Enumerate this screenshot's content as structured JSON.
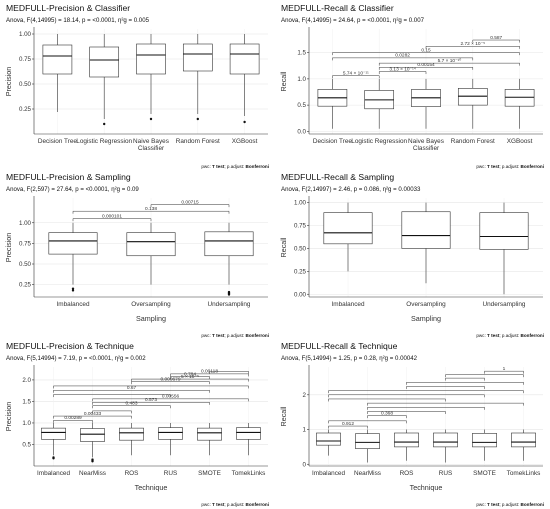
{
  "chart_data": [
    {
      "type": "boxplot",
      "title": "MEDFULL-Precision & Classifier",
      "subtitle": "Anova, F(4,14995) = 18.14, p = <0.0001, η²g = 0.005",
      "ylabel": "Precision",
      "xlabel": "",
      "footer_prefix": "pwc: ",
      "footer_test": "T test",
      "footer_mid": "; p.adjust: ",
      "footer_adjust": "Bonferroni",
      "ylim": [
        0,
        1.05
      ],
      "yticks": [
        "0.25",
        "0.50",
        "0.75",
        "1.00"
      ],
      "ytick_values": [
        0.25,
        0.5,
        0.75,
        1.0
      ],
      "categories": [
        "Decision Tree",
        "Logistic Regression",
        "Naive Bayes\nClassifier",
        "Random Forest",
        "XGBoost"
      ],
      "boxes": [
        {
          "min": 0.22,
          "q1": 0.6,
          "median": 0.78,
          "q3": 0.89,
          "max": 1.0,
          "outliers": []
        },
        {
          "min": 0.15,
          "q1": 0.57,
          "median": 0.74,
          "q3": 0.87,
          "max": 1.0,
          "outliers": [
            0.1
          ]
        },
        {
          "min": 0.2,
          "q1": 0.6,
          "median": 0.79,
          "q3": 0.9,
          "max": 1.0,
          "outliers": [
            0.15
          ]
        },
        {
          "min": 0.2,
          "q1": 0.63,
          "median": 0.8,
          "q3": 0.9,
          "max": 1.0,
          "outliers": [
            0.15
          ]
        },
        {
          "min": 0.18,
          "q1": 0.6,
          "median": 0.8,
          "q3": 0.9,
          "max": 1.0,
          "outliers": [
            0.12
          ]
        }
      ],
      "brackets": []
    },
    {
      "type": "boxplot",
      "title": "MEDFULL-Recall & Classifier",
      "subtitle": "Anova, F(4,14995) = 24.64, p = <0.0001, η²g = 0.007",
      "ylabel": "Recall",
      "xlabel": "",
      "footer_prefix": "pwc: ",
      "footer_test": "T test",
      "footer_mid": "; p.adjust: ",
      "footer_adjust": "Bonferroni",
      "ylim": [
        -0.05,
        1.95
      ],
      "yticks": [
        "0.0",
        "0.5",
        "1.0",
        "1.5"
      ],
      "ytick_values": [
        0.0,
        0.5,
        1.0,
        1.5
      ],
      "categories": [
        "Decision Tree",
        "Logistic Regression",
        "Naive Bayes\nClassifier",
        "Random Forest",
        "XGBoost"
      ],
      "boxes": [
        {
          "min": 0.05,
          "q1": 0.48,
          "median": 0.64,
          "q3": 0.8,
          "max": 1.0,
          "outliers": []
        },
        {
          "min": 0.05,
          "q1": 0.43,
          "median": 0.6,
          "q3": 0.78,
          "max": 1.0,
          "outliers": []
        },
        {
          "min": 0.05,
          "q1": 0.47,
          "median": 0.64,
          "q3": 0.8,
          "max": 1.0,
          "outliers": []
        },
        {
          "min": 0.05,
          "q1": 0.5,
          "median": 0.67,
          "q3": 0.82,
          "max": 1.0,
          "outliers": []
        },
        {
          "min": 0.05,
          "q1": 0.48,
          "median": 0.65,
          "q3": 0.8,
          "max": 1.0,
          "outliers": []
        }
      ],
      "brackets": [
        {
          "from": 1,
          "to": 2,
          "y": 1.06,
          "label": "5.74 × 10⁻¹¹"
        },
        {
          "from": 2,
          "to": 3,
          "y": 1.14,
          "label": "3.13 × 10⁻¹⁴"
        },
        {
          "from": 2,
          "to": 4,
          "y": 1.22,
          "label": "0.00154"
        },
        {
          "from": 2,
          "to": 5,
          "y": 1.3,
          "label": "5.7 × 10⁻¹⁰"
        },
        {
          "from": 1,
          "to": 4,
          "y": 1.4,
          "label": "0.0282"
        },
        {
          "from": 1,
          "to": 5,
          "y": 1.5,
          "label": "0.15"
        },
        {
          "from": 3,
          "to": 5,
          "y": 1.62,
          "label": "2.72 × 10⁻⁵"
        },
        {
          "from": 4,
          "to": 5,
          "y": 1.74,
          "label": "0.587"
        }
      ]
    },
    {
      "type": "boxplot",
      "title": "MEDFULL-Precision & Sampling",
      "subtitle": "Anova, F(2,597) = 27.64, p = <0.0001, η²g = 0.09",
      "ylabel": "Precision",
      "xlabel": "Sampling",
      "footer_prefix": "pwc: ",
      "footer_test": "T test",
      "footer_mid": "; p.adjust: ",
      "footer_adjust": "Bonferroni",
      "ylim": [
        0.1,
        1.3
      ],
      "yticks": [
        "0.25",
        "0.50",
        "0.75",
        "1.00"
      ],
      "ytick_values": [
        0.25,
        0.5,
        0.75,
        1.0
      ],
      "categories": [
        "Imbalanced",
        "Oversampling",
        "Undersampling"
      ],
      "boxes": [
        {
          "min": 0.25,
          "q1": 0.62,
          "median": 0.78,
          "q3": 0.88,
          "max": 1.0,
          "outliers": [
            0.2,
            0.18
          ]
        },
        {
          "min": 0.25,
          "q1": 0.6,
          "median": 0.77,
          "q3": 0.88,
          "max": 1.0,
          "outliers": []
        },
        {
          "min": 0.25,
          "q1": 0.6,
          "median": 0.78,
          "q3": 0.89,
          "max": 1.0,
          "outliers": [
            0.16,
            0.15,
            0.14,
            0.13
          ]
        }
      ],
      "brackets": [
        {
          "from": 1,
          "to": 2,
          "y": 1.05,
          "label": "0.000101"
        },
        {
          "from": 1,
          "to": 3,
          "y": 1.14,
          "label": "0.138"
        },
        {
          "from": 2,
          "to": 3,
          "y": 1.22,
          "label": "0.00715"
        }
      ]
    },
    {
      "type": "boxplot",
      "title": "MEDFULL-Recall & Sampling",
      "subtitle": "Anova, F(2,14997) = 2.46, p = 0.086, η²g = 0.00033",
      "ylabel": "Recall",
      "xlabel": "Sampling",
      "footer_prefix": "pwc: ",
      "footer_test": "T test",
      "footer_mid": "; p.adjust: ",
      "footer_adjust": "Bonferroni",
      "ylim": [
        -0.03,
        1.05
      ],
      "yticks": [
        "0.00",
        "0.25",
        "0.50",
        "0.75",
        "1.00"
      ],
      "ytick_values": [
        0.0,
        0.25,
        0.5,
        0.75,
        1.0
      ],
      "categories": [
        "Imbalanced",
        "Oversampling",
        "Undersampling"
      ],
      "boxes": [
        {
          "min": 0.25,
          "q1": 0.55,
          "median": 0.67,
          "q3": 0.89,
          "max": 1.0,
          "outliers": []
        },
        {
          "min": 0.12,
          "q1": 0.5,
          "median": 0.64,
          "q3": 0.9,
          "max": 1.0,
          "outliers": []
        },
        {
          "min": 0.0,
          "q1": 0.49,
          "median": 0.63,
          "q3": 0.89,
          "max": 1.0,
          "outliers": []
        }
      ],
      "brackets": []
    },
    {
      "type": "boxplot",
      "title": "MEDFULL-Precision & Technique",
      "subtitle": "Anova, F(5,14994) = 7.19, p = <0.0001, η²g = 0.002",
      "ylabel": "Precision",
      "xlabel": "Technique",
      "footer_prefix": "pwc: ",
      "footer_test": "T test",
      "footer_mid": "; p.adjust: ",
      "footer_adjust": "Bonferroni",
      "ylim": [
        0,
        2.3
      ],
      "yticks": [
        "0.5",
        "1.0",
        "1.5",
        "2.0"
      ],
      "ytick_values": [
        0.5,
        1.0,
        1.5,
        2.0
      ],
      "categories": [
        "Imbalanced",
        "NearMiss",
        "ROS",
        "RUS",
        "SMOTE",
        "TomekLinks"
      ],
      "boxes": [
        {
          "min": 0.25,
          "q1": 0.62,
          "median": 0.78,
          "q3": 0.88,
          "max": 1.0,
          "outliers": [
            0.2,
            0.18
          ]
        },
        {
          "min": 0.2,
          "q1": 0.57,
          "median": 0.74,
          "q3": 0.87,
          "max": 1.0,
          "outliers": [
            0.15,
            0.13,
            0.11
          ]
        },
        {
          "min": 0.25,
          "q1": 0.6,
          "median": 0.77,
          "q3": 0.88,
          "max": 1.0,
          "outliers": []
        },
        {
          "min": 0.25,
          "q1": 0.62,
          "median": 0.78,
          "q3": 0.89,
          "max": 1.0,
          "outliers": []
        },
        {
          "min": 0.25,
          "q1": 0.6,
          "median": 0.77,
          "q3": 0.88,
          "max": 1.0,
          "outliers": []
        },
        {
          "min": 0.25,
          "q1": 0.62,
          "median": 0.78,
          "q3": 0.89,
          "max": 1.0,
          "outliers": []
        }
      ],
      "brackets": [
        {
          "from": 1,
          "to": 2,
          "y": 1.06,
          "label": "0.00289"
        },
        {
          "from": 1,
          "to": 3,
          "y": 1.16,
          "label": "0.00433"
        },
        {
          "from": 2,
          "to": 3,
          "y": 1.28,
          "label": ""
        },
        {
          "from": 2,
          "to": 4,
          "y": 1.4,
          "label": "0.483"
        },
        {
          "from": 2,
          "to": 5,
          "y": 1.48,
          "label": "0.573"
        },
        {
          "from": 2,
          "to": 6,
          "y": 1.56,
          "label": "0.00556"
        },
        {
          "from": 1,
          "to": 4,
          "y": 1.66,
          "label": ""
        },
        {
          "from": 1,
          "to": 5,
          "y": 1.76,
          "label": "0.67"
        },
        {
          "from": 1,
          "to": 6,
          "y": 1.86,
          "label": ""
        },
        {
          "from": 3,
          "to": 5,
          "y": 1.96,
          "label": "0.000679"
        },
        {
          "from": 3,
          "to": 6,
          "y": 2.02,
          "label": "5 × 10⁻⁵"
        },
        {
          "from": 4,
          "to": 5,
          "y": 2.08,
          "label": "0.784"
        },
        {
          "from": 4,
          "to": 6,
          "y": 2.14,
          "label": "0.00118"
        },
        {
          "from": 5,
          "to": 6,
          "y": 2.2,
          "label": ""
        }
      ]
    },
    {
      "type": "boxplot",
      "title": "MEDFULL-Recall & Technique",
      "subtitle": "Anova, F(5,14994) = 1.25, p = 0.28, η²g = 0.00042",
      "ylabel": "Recall",
      "xlabel": "Technique",
      "footer_prefix": "pwc: ",
      "footer_test": "T test",
      "footer_mid": "; p.adjust: ",
      "footer_adjust": "Bonferroni",
      "ylim": [
        -0.05,
        2.8
      ],
      "yticks": [
        "0",
        "1",
        "2"
      ],
      "ytick_values": [
        0,
        1,
        2
      ],
      "categories": [
        "Imbalanced",
        "NearMiss",
        "ROS",
        "RUS",
        "SMOTE",
        "TomekLinks"
      ],
      "boxes": [
        {
          "min": 0.25,
          "q1": 0.55,
          "median": 0.67,
          "q3": 0.9,
          "max": 1.0,
          "outliers": []
        },
        {
          "min": 0.05,
          "q1": 0.45,
          "median": 0.63,
          "q3": 0.88,
          "max": 1.0,
          "outliers": []
        },
        {
          "min": 0.1,
          "q1": 0.5,
          "median": 0.64,
          "q3": 0.9,
          "max": 1.0,
          "outliers": []
        },
        {
          "min": 0.05,
          "q1": 0.5,
          "median": 0.64,
          "q3": 0.9,
          "max": 1.0,
          "outliers": []
        },
        {
          "min": 0.1,
          "q1": 0.5,
          "median": 0.63,
          "q3": 0.89,
          "max": 1.0,
          "outliers": []
        },
        {
          "min": 0.1,
          "q1": 0.5,
          "median": 0.64,
          "q3": 0.9,
          "max": 1.0,
          "outliers": []
        }
      ],
      "brackets": [
        {
          "from": 1,
          "to": 2,
          "y": 1.1,
          "label": "0.912"
        },
        {
          "from": 1,
          "to": 3,
          "y": 1.25,
          "label": ""
        },
        {
          "from": 2,
          "to": 3,
          "y": 1.4,
          "label": "0.368"
        },
        {
          "from": 2,
          "to": 4,
          "y": 1.52,
          "label": ""
        },
        {
          "from": 2,
          "to": 5,
          "y": 1.64,
          "label": ""
        },
        {
          "from": 2,
          "to": 6,
          "y": 1.76,
          "label": ""
        },
        {
          "from": 1,
          "to": 4,
          "y": 1.88,
          "label": ""
        },
        {
          "from": 1,
          "to": 5,
          "y": 2.0,
          "label": ""
        },
        {
          "from": 1,
          "to": 6,
          "y": 2.12,
          "label": ""
        },
        {
          "from": 3,
          "to": 5,
          "y": 2.24,
          "label": ""
        },
        {
          "from": 3,
          "to": 6,
          "y": 2.36,
          "label": ""
        },
        {
          "from": 4,
          "to": 5,
          "y": 2.48,
          "label": ""
        },
        {
          "from": 4,
          "to": 6,
          "y": 2.58,
          "label": ""
        },
        {
          "from": 5,
          "to": 6,
          "y": 2.68,
          "label": "1"
        }
      ]
    }
  ]
}
